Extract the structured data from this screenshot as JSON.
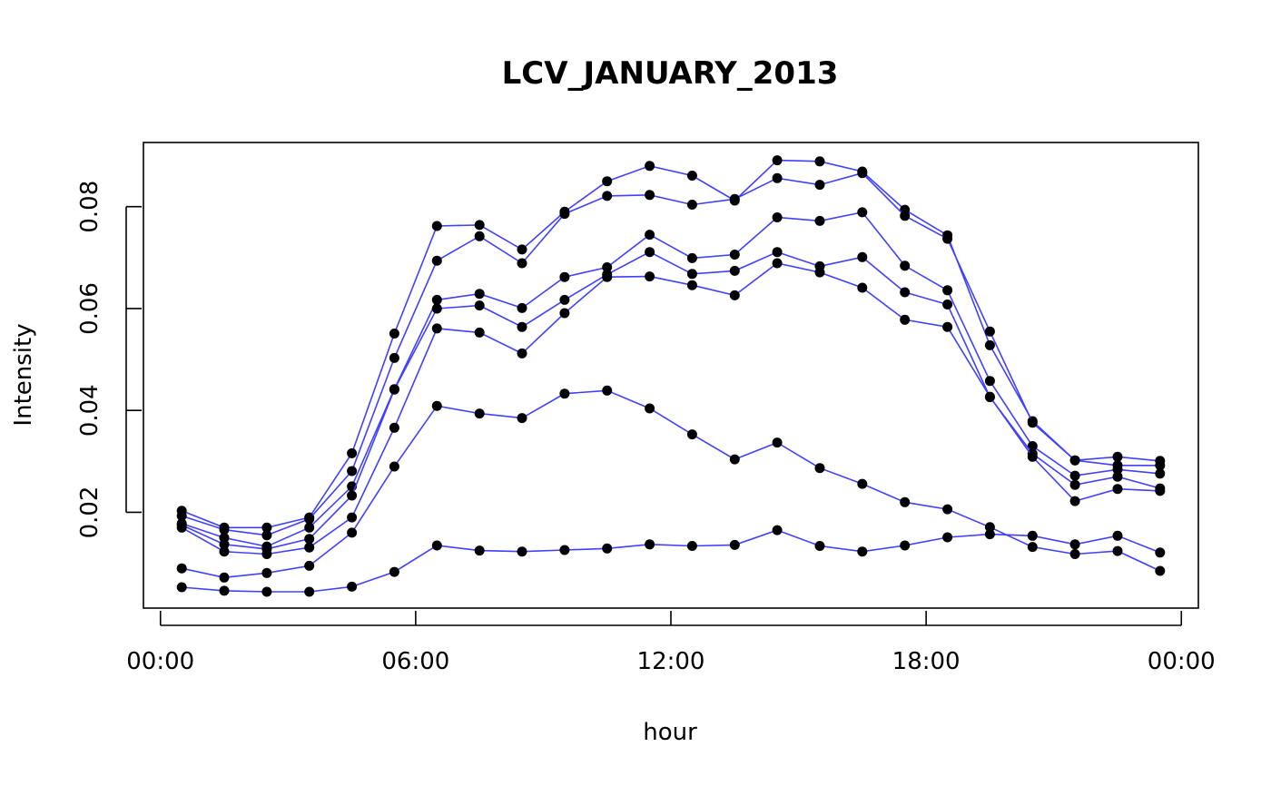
{
  "chart_data": {
    "type": "line",
    "title": "LCV_JANUARY_2013",
    "xlabel": "hour",
    "ylabel": "Intensity",
    "x_ticks": [
      {
        "hour": 0,
        "label": "00:00"
      },
      {
        "hour": 6,
        "label": "06:00"
      },
      {
        "hour": 12,
        "label": "12:00"
      },
      {
        "hour": 18,
        "label": "18:00"
      },
      {
        "hour": 24,
        "label": "00:00"
      }
    ],
    "y_ticks": [
      {
        "value": 0.02,
        "label": "0.02"
      },
      {
        "value": 0.04,
        "label": "0.04"
      },
      {
        "value": 0.06,
        "label": "0.06"
      },
      {
        "value": 0.08,
        "label": "0.08"
      }
    ],
    "xlim": [
      -0.4,
      24.4
    ],
    "ylim": [
      0.0012,
      0.0926
    ],
    "line_color": "#4040ff",
    "point_color": "#000000",
    "x": [
      0.5,
      1.5,
      2.5,
      3.5,
      4.5,
      5.5,
      6.5,
      7.5,
      8.5,
      9.5,
      10.5,
      11.5,
      12.5,
      13.5,
      14.5,
      15.5,
      16.5,
      17.5,
      18.5,
      19.5,
      20.5,
      21.5,
      22.5,
      23.5
    ],
    "series": [
      {
        "values": [
          0.0203,
          0.017,
          0.017,
          0.019,
          0.0316,
          0.0551,
          0.0762,
          0.0764,
          0.0716,
          0.079,
          0.085,
          0.088,
          0.0861,
          0.0812,
          0.0891,
          0.0889,
          0.0869,
          0.0794,
          0.0744,
          0.0528,
          0.0379,
          0.0302,
          0.0292,
          0.0292
        ]
      },
      {
        "values": [
          0.0193,
          0.0166,
          0.0155,
          0.0187,
          0.0281,
          0.0503,
          0.0694,
          0.0742,
          0.0689,
          0.0786,
          0.0821,
          0.0823,
          0.0804,
          0.0815,
          0.0856,
          0.0843,
          0.0866,
          0.0782,
          0.0737,
          0.0555,
          0.0376,
          0.0302,
          0.0309,
          0.0301
        ]
      },
      {
        "values": [
          0.0178,
          0.015,
          0.0133,
          0.017,
          0.0251,
          0.0442,
          0.0617,
          0.0629,
          0.0601,
          0.0662,
          0.0681,
          0.0745,
          0.0699,
          0.0706,
          0.0779,
          0.0772,
          0.0789,
          0.0684,
          0.0636,
          0.0458,
          0.033,
          0.0272,
          0.0284,
          0.0276
        ]
      },
      {
        "values": [
          0.0175,
          0.0137,
          0.0128,
          0.0148,
          0.0233,
          0.0441,
          0.06,
          0.0606,
          0.0564,
          0.0617,
          0.0667,
          0.0711,
          0.0668,
          0.0674,
          0.0711,
          0.0683,
          0.0701,
          0.0632,
          0.0608,
          0.0426,
          0.0315,
          0.0254,
          0.027,
          0.0247
        ]
      },
      {
        "values": [
          0.017,
          0.0123,
          0.0118,
          0.0131,
          0.019,
          0.0366,
          0.0561,
          0.0553,
          0.0512,
          0.0591,
          0.0662,
          0.0663,
          0.0646,
          0.0626,
          0.0689,
          0.0671,
          0.0641,
          0.0578,
          0.0564,
          0.0427,
          0.0309,
          0.0222,
          0.0246,
          0.0242
        ]
      },
      {
        "values": [
          0.009,
          0.0072,
          0.0081,
          0.0095,
          0.016,
          0.029,
          0.0409,
          0.0394,
          0.0385,
          0.0433,
          0.0439,
          0.0404,
          0.0353,
          0.0304,
          0.0337,
          0.0287,
          0.0256,
          0.022,
          0.0206,
          0.0171,
          0.0132,
          0.0118,
          0.0124,
          0.0085
        ]
      },
      {
        "values": [
          0.0053,
          0.0046,
          0.0044,
          0.0044,
          0.0054,
          0.0083,
          0.0135,
          0.0125,
          0.0123,
          0.0126,
          0.0129,
          0.0137,
          0.0134,
          0.0136,
          0.0165,
          0.0134,
          0.0123,
          0.0135,
          0.0151,
          0.0157,
          0.0154,
          0.0137,
          0.0154,
          0.0121
        ]
      }
    ]
  }
}
